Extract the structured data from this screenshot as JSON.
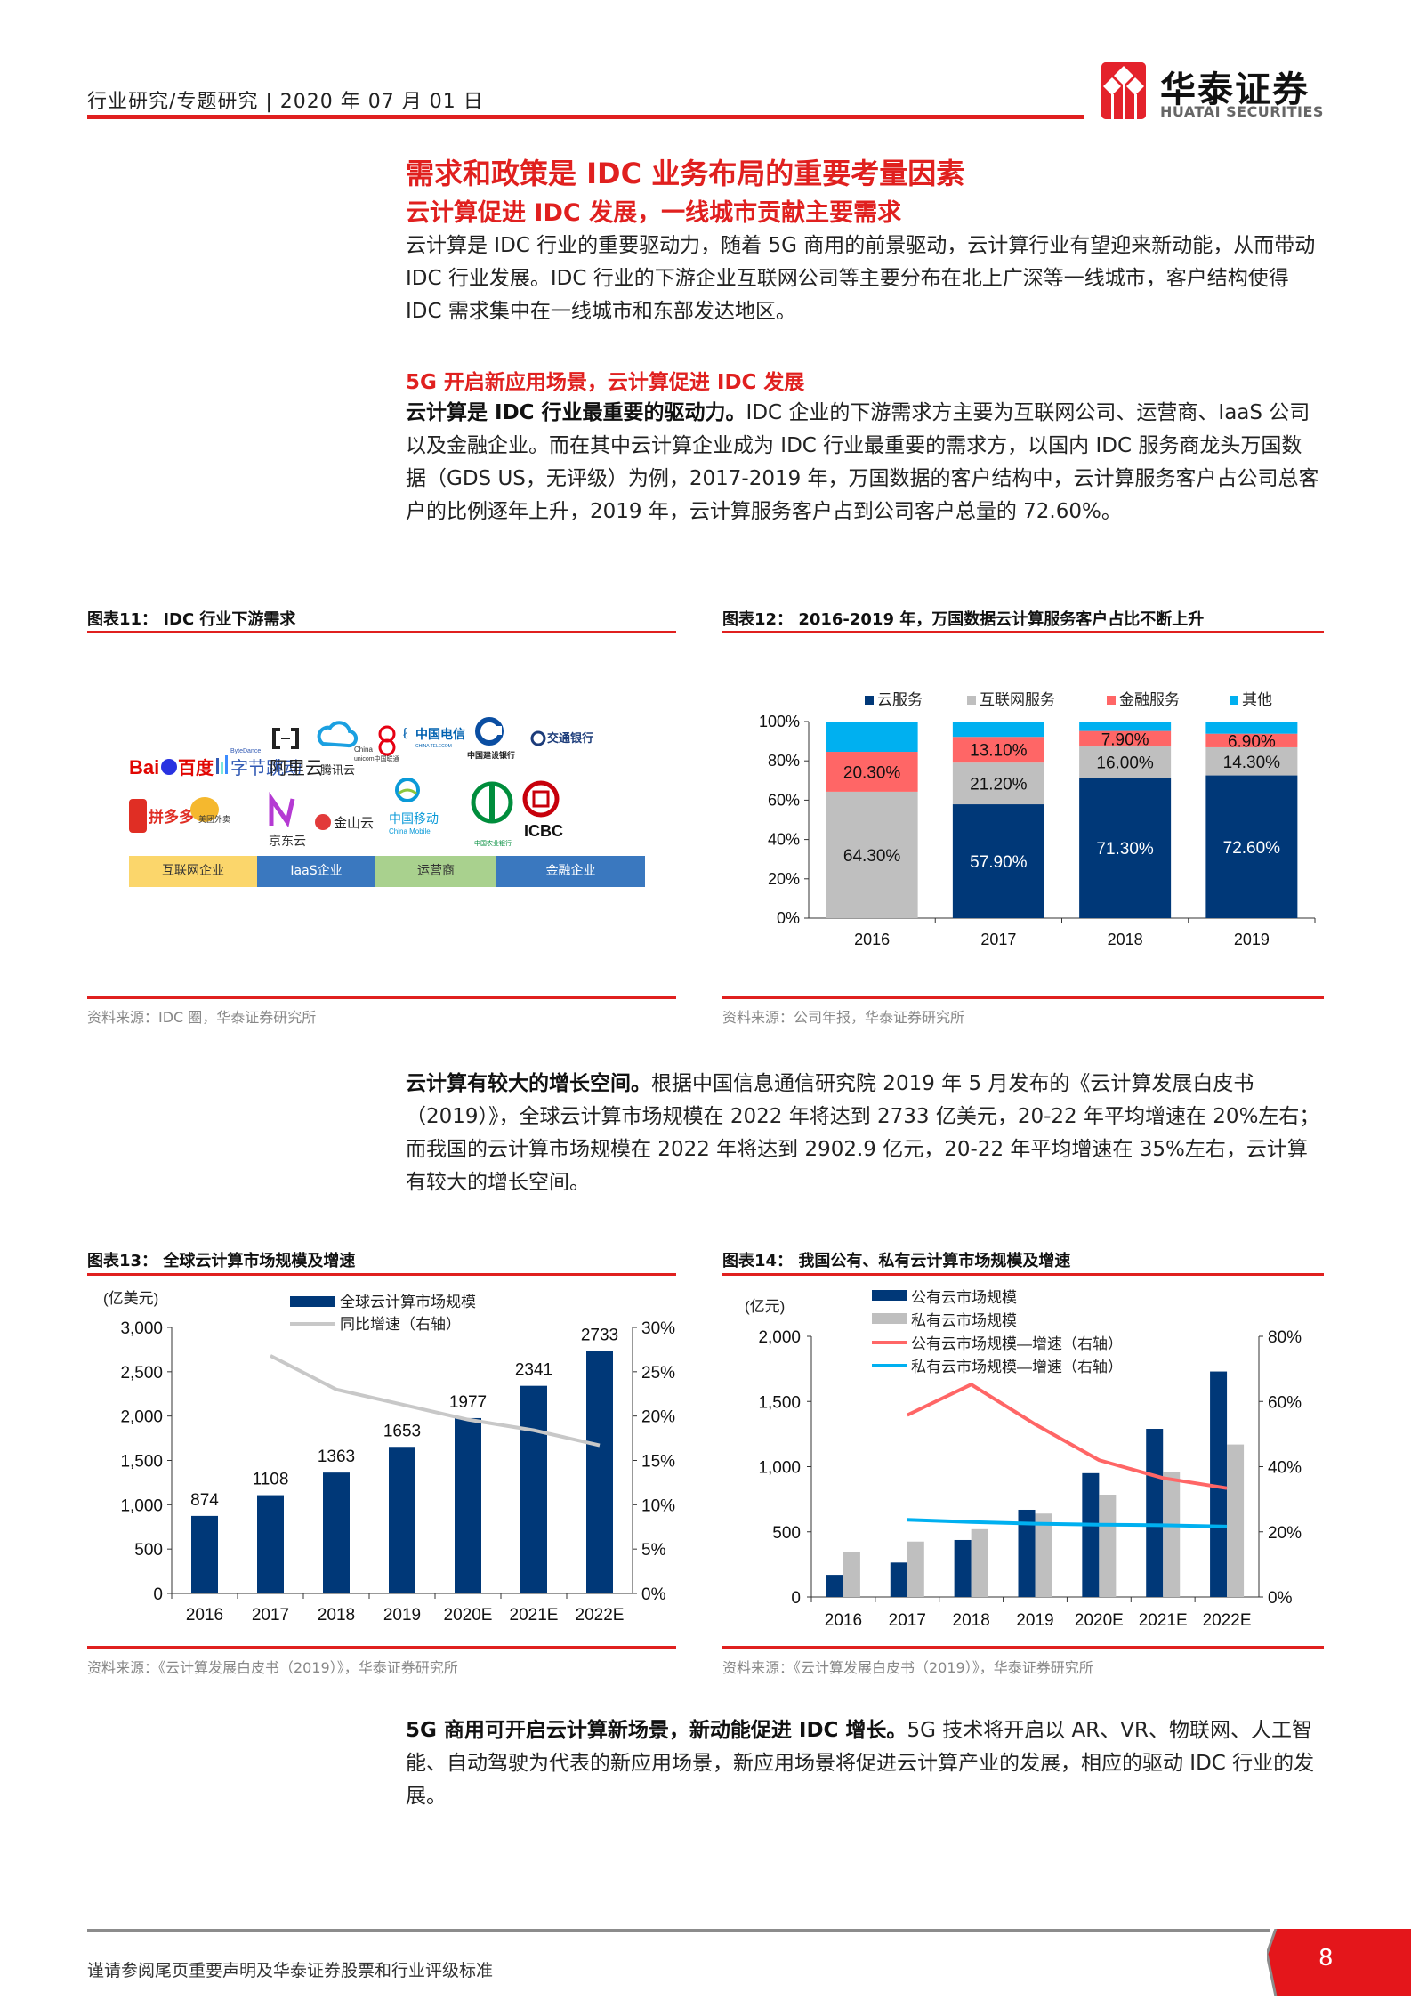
{
  "header": {
    "breadcrumb": "行业研究/专题研究 | 2020 年 07 月 01 日",
    "logo_cn": "华泰证券",
    "logo_en": "HUATAI SECURITIES"
  },
  "headings": {
    "main": "需求和政策是 IDC 业务布局的重要考量因素",
    "sub": "云计算促进 IDC 发展，一线城市贡献主要需求"
  },
  "paragraphs": {
    "p1": "云计算是 IDC 行业的重要驱动力，随着 5G 商用的前景驱动，云计算行业有望迎来新动能，从而带动 IDC 行业发展。IDC 行业的下游企业互联网公司等主要分布在北上广深等一线城市，客户结构使得 IDC 需求集中在一线城市和东部发达地区。",
    "section2_title": "5G 开启新应用场景，云计算促进 IDC 发展",
    "p2_bold": "云计算是 IDC 行业最重要的驱动力。",
    "p2_rest": "IDC 企业的下游需求方主要为互联网公司、运营商、IaaS 公司以及金融企业。而在其中云计算企业成为 IDC 行业最重要的需求方，以国内 IDC 服务商龙头万国数据（GDS US，无评级）为例，2017-2019 年，万国数据的客户结构中，云计算服务客户占公司总客户的比例逐年上升，2019 年，云计算服务客户占到公司客户总量的 72.60%。",
    "p3_bold": "云计算有较大的增长空间。",
    "p3_rest": "根据中国信息通信研究院 2019 年 5 月发布的《云计算发展白皮书（2019）》，全球云计算市场规模在 2022 年将达到 2733 亿美元，20-22 年平均增速在 20%左右；而我国的云计算市场规模在 2022 年将达到 2902.9 亿元，20-22 年平均增速在 35%左右，云计算有较大的增长空间。",
    "p4_bold": "5G 商用可开启云计算新场景，新动能促进 IDC 增长。",
    "p4_rest": "5G 技术将开启以 AR、VR、物联网、人工智能、自动驾驶为代表的新应用场景，新应用场景将促进云计算产业的发展，相应的驱动 IDC 行业的发展。"
  },
  "figures": {
    "fig11": {
      "title": "图表11：  IDC 行业下游需求",
      "source": "资料来源：IDC 圈，华泰证券研究所",
      "logos": [
        "Bai百度",
        "字节跳动",
        "阿里云",
        "腾讯云",
        "China Unicom 中国联通",
        "中国电信",
        "中国建设银行",
        "交通银行",
        "拼多多",
        "美团外卖",
        "京东云",
        "金山云",
        "中国移动 China Mobile",
        "中国农业银行",
        "ICBC"
      ],
      "categories": [
        {
          "label": "互联网企业",
          "color": "#fbd66b"
        },
        {
          "label": "IaaS企业",
          "color": "#3a78bf"
        },
        {
          "label": "运营商",
          "color": "#a9d18e"
        },
        {
          "label": "金融企业",
          "color": "#3a78bf"
        }
      ]
    },
    "fig12": {
      "title": "图表12：  2016-2019 年，万国数据云计算服务客户占比不断上升",
      "source": "资料来源：公司年报，华泰证券研究所"
    },
    "fig13": {
      "title": "图表13：  全球云计算市场规模及增速",
      "source": "资料来源：《云计算发展白皮书（2019）》，华泰证券研究所"
    },
    "fig14": {
      "title": "图表14：  我国公有、私有云计算市场规模及增速",
      "source": "资料来源：《云计算发展白皮书（2019）》，华泰证券研究所"
    }
  },
  "chart_data": [
    {
      "id": "fig12",
      "type": "bar",
      "stacked": true,
      "title": "2016-2019 年，万国数据云计算服务客户占比不断上升",
      "categories": [
        "2016",
        "2017",
        "2018",
        "2019"
      ],
      "series": [
        {
          "name": "云服务",
          "color": "#003878",
          "values": [
            0,
            57.9,
            71.3,
            72.6
          ],
          "labels": [
            "",
            "57.90%",
            "71.30%",
            "72.60%"
          ]
        },
        {
          "name": "互联网服务",
          "color": "#bfbfbf",
          "values": [
            64.3,
            21.2,
            16.0,
            14.3
          ],
          "labels": [
            "64.30%",
            "21.20%",
            "16.00%",
            "14.30%"
          ]
        },
        {
          "name": "金融服务",
          "color": "#ff6666",
          "values": [
            20.3,
            13.1,
            7.9,
            6.9
          ],
          "labels": [
            "20.30%",
            "13.10%",
            "7.90%",
            "6.90%"
          ]
        },
        {
          "name": "其他",
          "color": "#00b0f0",
          "values": [
            15.4,
            7.8,
            4.8,
            6.2
          ],
          "labels": [
            "",
            "",
            "",
            ""
          ]
        }
      ],
      "yticks": [
        "0%",
        "20%",
        "40%",
        "60%",
        "80%",
        "100%"
      ],
      "ylim": [
        0,
        100
      ],
      "legend_position": "top"
    },
    {
      "id": "fig13",
      "type": "bar+line",
      "title": "全球云计算市场规模及增速",
      "ylabel": "(亿美元)",
      "categories": [
        "2016",
        "2017",
        "2018",
        "2019",
        "2020E",
        "2021E",
        "2022E"
      ],
      "series": [
        {
          "name": "全球云计算市场规模",
          "type": "bar",
          "axis": "left",
          "color": "#003878",
          "values": [
            874,
            1108,
            1363,
            1653,
            1977,
            2341,
            2733
          ]
        },
        {
          "name": "同比增速（右轴）",
          "type": "line",
          "axis": "right",
          "color": "#c8c8c8",
          "values": [
            null,
            26.8,
            23.0,
            21.3,
            19.6,
            18.4,
            16.7
          ]
        }
      ],
      "yticks_left": [
        "0",
        "500",
        "1,000",
        "1,500",
        "2,000",
        "2,500",
        "3,000"
      ],
      "ylim_left": [
        0,
        3000
      ],
      "yticks_right": [
        "0%",
        "5%",
        "10%",
        "15%",
        "20%",
        "25%",
        "30%"
      ],
      "ylim_right": [
        0,
        30
      ]
    },
    {
      "id": "fig14",
      "type": "bar+line",
      "title": "我国公有、私有云计算市场规模及增速",
      "ylabel": "(亿元)",
      "categories": [
        "2016",
        "2017",
        "2018",
        "2019",
        "2020E",
        "2021E",
        "2022E"
      ],
      "series": [
        {
          "name": "公有云市场规模",
          "type": "bar",
          "axis": "left",
          "color": "#003878",
          "values": [
            170,
            264,
            437,
            669,
            950,
            1290,
            1730
          ]
        },
        {
          "name": "私有云市场规模",
          "type": "bar",
          "axis": "left",
          "color": "#bfbfbf",
          "values": [
            345,
            425,
            520,
            640,
            785,
            960,
            1170
          ]
        },
        {
          "name": "公有云市场规模—增速（右轴）",
          "type": "line",
          "axis": "right",
          "color": "#ff6666",
          "values": [
            null,
            55.8,
            65.2,
            53.0,
            42.0,
            36.5,
            33.4
          ]
        },
        {
          "name": "私有云市场规模—增速（右轴）",
          "type": "line",
          "axis": "right",
          "color": "#00b0f0",
          "values": [
            null,
            23.7,
            23.0,
            22.5,
            22.2,
            22.0,
            21.6
          ]
        }
      ],
      "yticks_left": [
        "0",
        "500",
        "1,000",
        "1,500",
        "2,000"
      ],
      "ylim_left": [
        0,
        2000
      ],
      "yticks_right": [
        "0%",
        "20%",
        "40%",
        "60%",
        "80%"
      ],
      "ylim_right": [
        0,
        80
      ]
    }
  ],
  "footer": {
    "disclaimer": "谨请参阅尾页重要声明及华泰证券股票和行业评级标准",
    "page_number": "8"
  }
}
